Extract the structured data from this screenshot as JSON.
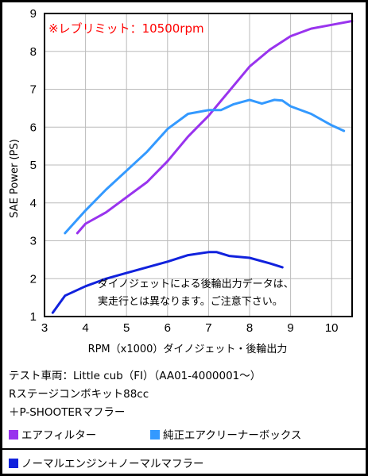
{
  "chart_data": {
    "type": "line",
    "rev_limit_note": "※レブリミット：10500rpm",
    "xlabel": "RPM（x1000）ダイノジェット・後輪出力",
    "ylabel": "SAE Power (PS)",
    "xlim": [
      3,
      10.5
    ],
    "ylim": [
      1,
      9
    ],
    "xticks": [
      "3",
      "4",
      "5",
      "6",
      "7",
      "8",
      "9",
      "10"
    ],
    "yticks": [
      "1",
      "2",
      "3",
      "4",
      "5",
      "6",
      "7",
      "8",
      "9"
    ],
    "grid": true,
    "annotation_lines": [
      "ダイノジェットによる後輪出力データは、",
      "実走行とは異なります。ご注意下さい。"
    ],
    "series": [
      {
        "name": "エアフィルター",
        "color": "#9933ee",
        "x": [
          3.8,
          4.0,
          4.5,
          5.0,
          5.5,
          6.0,
          6.5,
          7.0,
          7.5,
          8.0,
          8.5,
          9.0,
          9.5,
          10.0,
          10.5
        ],
        "y": [
          3.2,
          3.45,
          3.75,
          4.15,
          4.55,
          5.1,
          5.75,
          6.3,
          6.95,
          7.6,
          8.05,
          8.4,
          8.6,
          8.7,
          8.8
        ]
      },
      {
        "name": "純正エアクリーナーボックス",
        "color": "#3399ff",
        "x": [
          3.5,
          4.0,
          4.5,
          5.0,
          5.5,
          6.0,
          6.5,
          7.0,
          7.3,
          7.6,
          8.0,
          8.3,
          8.6,
          8.8,
          9.0,
          9.5,
          10.0,
          10.3
        ],
        "y": [
          3.2,
          3.8,
          4.35,
          4.85,
          5.35,
          5.95,
          6.35,
          6.45,
          6.45,
          6.6,
          6.72,
          6.62,
          6.72,
          6.7,
          6.55,
          6.35,
          6.05,
          5.9
        ]
      },
      {
        "name": "ノーマルエンジン＋ノーマルマフラー",
        "color": "#1122dd",
        "x": [
          3.2,
          3.5,
          4.0,
          4.5,
          5.0,
          5.5,
          6.0,
          6.5,
          7.0,
          7.2,
          7.5,
          8.0,
          8.5,
          8.8
        ],
        "y": [
          1.1,
          1.55,
          1.8,
          2.0,
          2.15,
          2.3,
          2.45,
          2.62,
          2.7,
          2.7,
          2.6,
          2.55,
          2.4,
          2.3
        ]
      }
    ]
  },
  "info": {
    "vehicle_line": "テスト車両：Little cub（FI）（AA01-4000001～）",
    "kit_line": "Rステージコンボキット88cc",
    "muffler_line": "＋P-SHOOTERマフラー"
  },
  "legend": {
    "air_filter": "エアフィルター",
    "stock_box": "純正エアクリーナーボックス",
    "normal": "ノーマルエンジン＋ノーマルマフラー"
  },
  "colors": {
    "background": "#ffffff",
    "frame": "#000000",
    "grid": "#bbbbbb",
    "rev_text": "#ff0000"
  }
}
